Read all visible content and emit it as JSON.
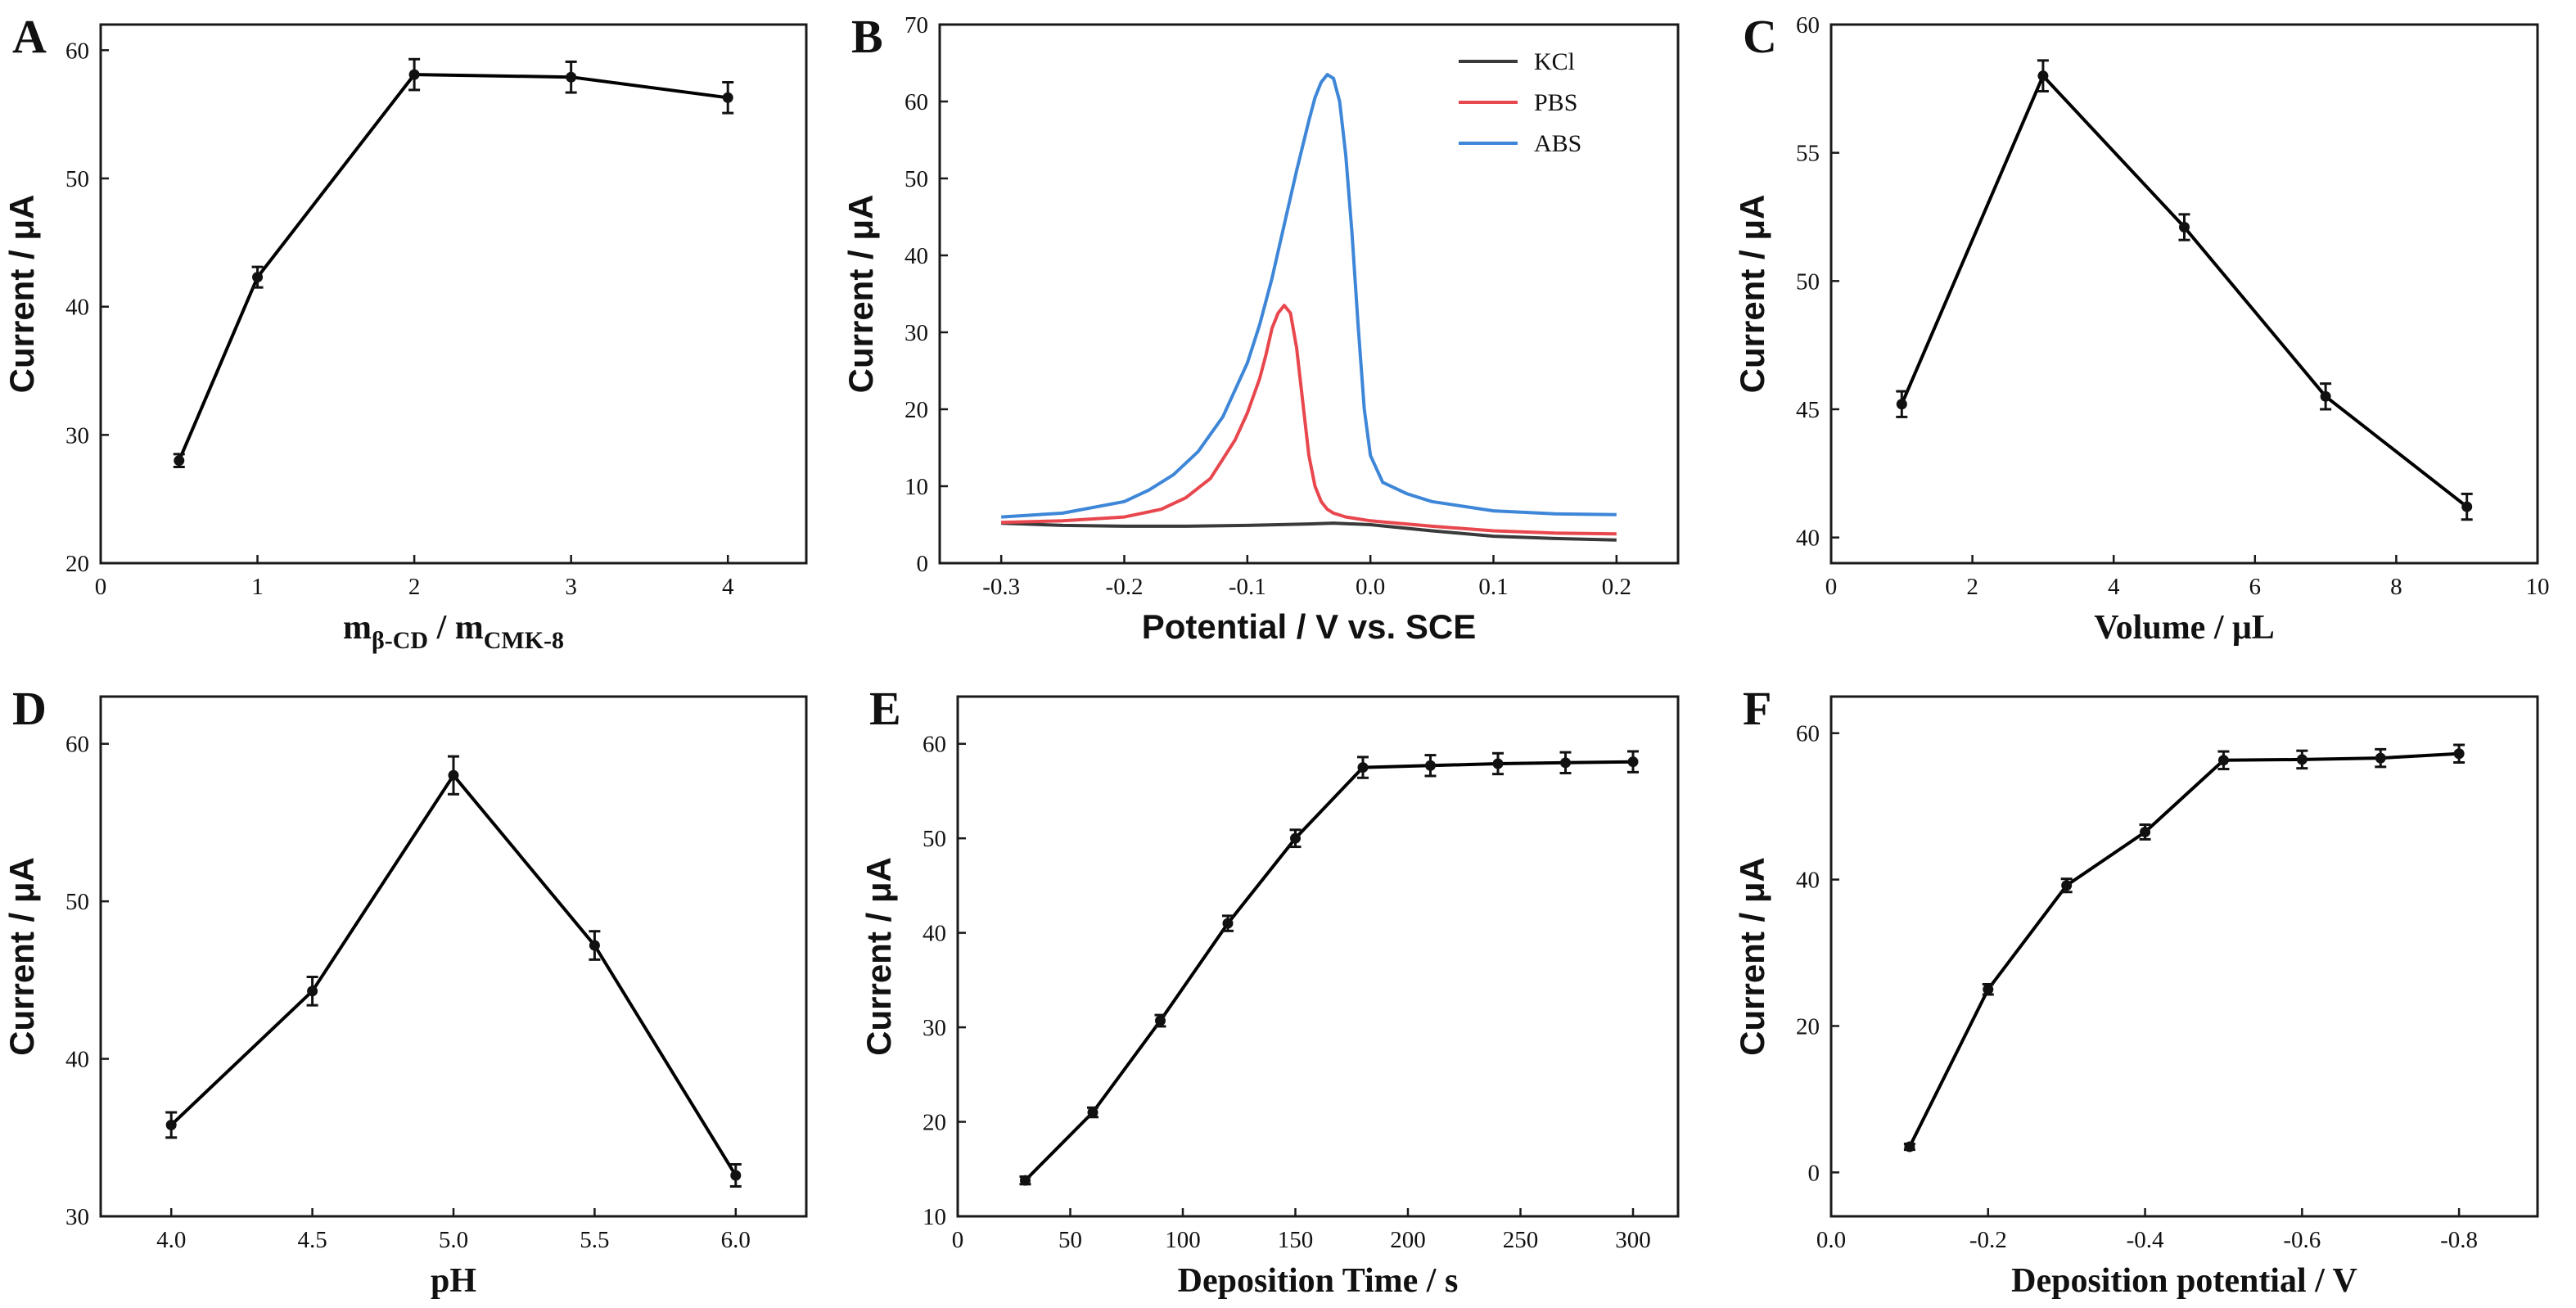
{
  "chart_data": [
    {
      "id": "A",
      "panel_label": "A",
      "type": "line",
      "xlabel_main": "m",
      "xlabel_sub1": "β-CD",
      "xlabel_mid": " / m",
      "xlabel_sub2": "CMK-8",
      "ylabel": "Current / μA",
      "xlim": [
        0,
        4.5
      ],
      "ylim": [
        20,
        62
      ],
      "xticks": [
        0,
        1,
        2,
        3,
        4
      ],
      "xtick_labels": [
        "0",
        "1",
        "2",
        "3",
        "4"
      ],
      "yticks": [
        20,
        30,
        40,
        50,
        60
      ],
      "ytick_labels": [
        "20",
        "30",
        "40",
        "50",
        "60"
      ],
      "series": [
        {
          "name": "Current",
          "color": "#000000",
          "x": [
            0.5,
            1,
            2,
            3,
            4
          ],
          "y": [
            28.0,
            42.3,
            58.1,
            57.9,
            56.3
          ],
          "err": [
            0.5,
            0.8,
            1.2,
            1.2,
            1.2
          ]
        }
      ]
    },
    {
      "id": "B",
      "panel_label": "B",
      "type": "line",
      "xlabel": "Potential / V vs. SCE",
      "ylabel": "Current / μA",
      "xlim": [
        -0.35,
        0.25
      ],
      "ylim": [
        0,
        70
      ],
      "xticks": [
        -0.3,
        -0.2,
        -0.1,
        0.0,
        0.1,
        0.2
      ],
      "xtick_labels": [
        "-0.3",
        "-0.2",
        "-0.1",
        "0.0",
        "0.1",
        "0.2"
      ],
      "yticks": [
        0,
        10,
        20,
        30,
        40,
        50,
        60,
        70
      ],
      "ytick_labels": [
        "0",
        "10",
        "20",
        "30",
        "40",
        "50",
        "60",
        "70"
      ],
      "legend_position": "top-right",
      "series": [
        {
          "name": "KCl",
          "color": "#3a3a3a",
          "x": [
            -0.3,
            -0.25,
            -0.2,
            -0.15,
            -0.1,
            -0.05,
            -0.03,
            0.0,
            0.05,
            0.1,
            0.15,
            0.2
          ],
          "y": [
            5.2,
            4.9,
            4.8,
            4.8,
            4.9,
            5.1,
            5.2,
            5.0,
            4.2,
            3.5,
            3.2,
            3.0
          ]
        },
        {
          "name": "PBS",
          "color": "#e8474e",
          "x": [
            -0.3,
            -0.25,
            -0.2,
            -0.17,
            -0.15,
            -0.13,
            -0.12,
            -0.11,
            -0.1,
            -0.09,
            -0.085,
            -0.08,
            -0.075,
            -0.07,
            -0.065,
            -0.06,
            -0.055,
            -0.05,
            -0.045,
            -0.04,
            -0.035,
            -0.03,
            -0.02,
            0.0,
            0.05,
            0.1,
            0.15,
            0.2
          ],
          "y": [
            5.3,
            5.5,
            6.0,
            7.0,
            8.5,
            11.0,
            13.5,
            16.0,
            19.5,
            24.0,
            27.0,
            30.5,
            32.5,
            33.5,
            32.5,
            28.0,
            21.0,
            14.0,
            10.0,
            8.0,
            7.0,
            6.5,
            6.0,
            5.5,
            4.8,
            4.2,
            3.9,
            3.8
          ]
        },
        {
          "name": "ABS",
          "color": "#3e86d8",
          "x": [
            -0.3,
            -0.25,
            -0.2,
            -0.18,
            -0.16,
            -0.14,
            -0.12,
            -0.1,
            -0.09,
            -0.08,
            -0.07,
            -0.06,
            -0.05,
            -0.045,
            -0.04,
            -0.035,
            -0.03,
            -0.025,
            -0.02,
            -0.015,
            -0.01,
            -0.005,
            0.0,
            0.01,
            0.03,
            0.05,
            0.1,
            0.15,
            0.2
          ],
          "y": [
            6.0,
            6.5,
            8.0,
            9.5,
            11.5,
            14.5,
            19.0,
            26.0,
            31.0,
            37.0,
            44.0,
            51.0,
            57.5,
            60.5,
            62.5,
            63.5,
            63.0,
            60.0,
            53.0,
            43.0,
            31.0,
            20.0,
            14.0,
            10.5,
            9.0,
            8.0,
            6.8,
            6.4,
            6.3
          ]
        }
      ]
    },
    {
      "id": "C",
      "panel_label": "C",
      "type": "line",
      "xlabel": "Volume / μL",
      "ylabel": "Current / μA",
      "xlim": [
        0,
        10
      ],
      "ylim": [
        39,
        60
      ],
      "xticks": [
        0,
        2,
        4,
        6,
        8,
        10
      ],
      "xtick_labels": [
        "0",
        "2",
        "4",
        "6",
        "8",
        "10"
      ],
      "yticks": [
        40,
        45,
        50,
        55,
        60
      ],
      "ytick_labels": [
        "40",
        "45",
        "50",
        "55",
        "60"
      ],
      "series": [
        {
          "name": "Current",
          "color": "#000000",
          "x": [
            1,
            3,
            5,
            7,
            9
          ],
          "y": [
            45.2,
            58.0,
            52.1,
            45.5,
            41.2
          ],
          "err": [
            0.5,
            0.6,
            0.5,
            0.5,
            0.5
          ]
        }
      ]
    },
    {
      "id": "D",
      "panel_label": "D",
      "type": "line",
      "xlabel": "pH",
      "ylabel": "Current / μA",
      "xlim": [
        3.75,
        6.25
      ],
      "ylim": [
        30,
        63
      ],
      "xticks": [
        4.0,
        4.5,
        5.0,
        5.5,
        6.0
      ],
      "xtick_labels": [
        "4.0",
        "4.5",
        "5.0",
        "5.5",
        "6.0"
      ],
      "yticks": [
        30,
        40,
        50,
        60
      ],
      "ytick_labels": [
        "30",
        "40",
        "50",
        "60"
      ],
      "series": [
        {
          "name": "Current",
          "color": "#000000",
          "x": [
            4.0,
            4.5,
            5.0,
            5.5,
            6.0
          ],
          "y": [
            35.8,
            44.3,
            58.0,
            47.2,
            32.6
          ],
          "err": [
            0.8,
            0.9,
            1.2,
            0.9,
            0.7
          ]
        }
      ]
    },
    {
      "id": "E",
      "panel_label": "E",
      "type": "line",
      "xlabel": "Deposition Time / s",
      "ylabel": "Current / μA",
      "xlim": [
        0,
        320
      ],
      "ylim": [
        10,
        65
      ],
      "xticks": [
        0,
        50,
        100,
        150,
        200,
        250,
        300
      ],
      "xtick_labels": [
        "0",
        "50",
        "100",
        "150",
        "200",
        "250",
        "300"
      ],
      "yticks": [
        10,
        20,
        30,
        40,
        50,
        60
      ],
      "ytick_labels": [
        "10",
        "20",
        "30",
        "40",
        "50",
        "60"
      ],
      "series": [
        {
          "name": "Current",
          "color": "#000000",
          "x": [
            30,
            60,
            90,
            120,
            150,
            180,
            210,
            240,
            270,
            300
          ],
          "y": [
            13.8,
            21.0,
            30.7,
            41.0,
            50.0,
            57.5,
            57.7,
            57.9,
            58.0,
            58.1
          ],
          "err": [
            0.4,
            0.5,
            0.6,
            0.8,
            0.9,
            1.1,
            1.1,
            1.1,
            1.1,
            1.1
          ]
        }
      ]
    },
    {
      "id": "F",
      "panel_label": "F",
      "type": "line",
      "xlabel": "Deposition potential / V",
      "ylabel": "Current / μA",
      "xlim": [
        0.0,
        -0.9
      ],
      "ylim": [
        -6,
        65
      ],
      "xticks": [
        0.0,
        -0.2,
        -0.4,
        -0.6,
        -0.8
      ],
      "xtick_labels": [
        "0.0",
        "-0.2",
        "-0.4",
        "-0.6",
        "-0.8"
      ],
      "yticks": [
        0,
        20,
        40,
        60
      ],
      "ytick_labels": [
        "0",
        "20",
        "40",
        "60"
      ],
      "series": [
        {
          "name": "Current",
          "color": "#000000",
          "x": [
            -0.1,
            -0.2,
            -0.3,
            -0.4,
            -0.5,
            -0.6,
            -0.7,
            -0.8
          ],
          "y": [
            3.5,
            25.0,
            39.2,
            46.5,
            56.3,
            56.4,
            56.6,
            57.2
          ],
          "err": [
            0.4,
            0.7,
            0.9,
            1.0,
            1.2,
            1.2,
            1.2,
            1.2
          ]
        }
      ]
    }
  ]
}
